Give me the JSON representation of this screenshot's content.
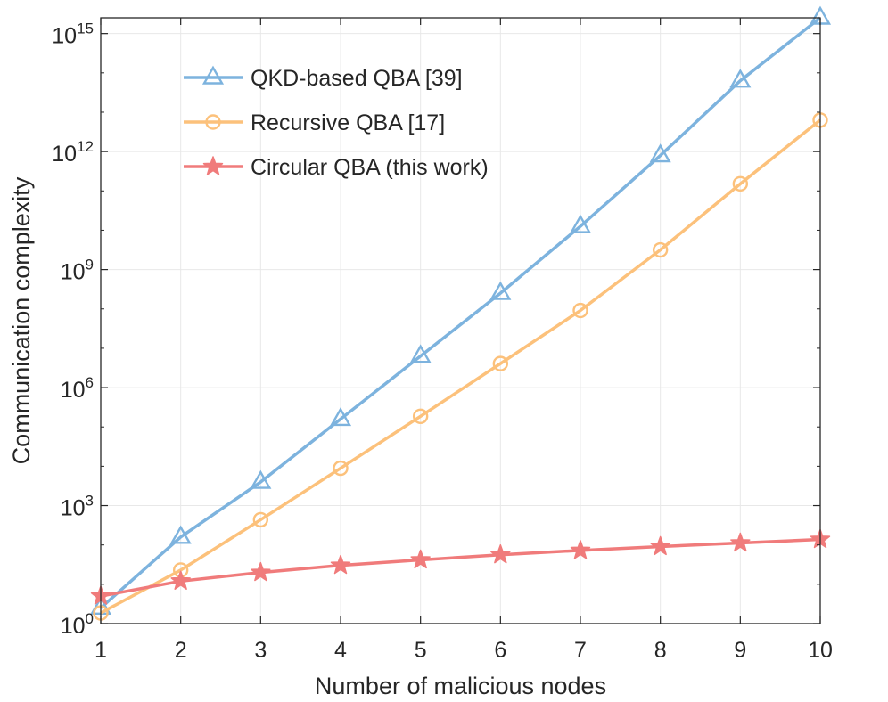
{
  "chart_data": {
    "type": "line",
    "title": "",
    "xlabel": "Number of malicious nodes",
    "ylabel": "Communication complexity",
    "yscale": "log10",
    "x": [
      1,
      2,
      3,
      4,
      5,
      6,
      7,
      8,
      9,
      10
    ],
    "xlim": [
      1,
      10
    ],
    "ylim_exponent": [
      0,
      15.4
    ],
    "grid": true,
    "legend_position": "top-left",
    "x_ticks": [
      "1",
      "2",
      "3",
      "4",
      "5",
      "6",
      "7",
      "8",
      "9",
      "10"
    ],
    "y_ticks": [
      {
        "base": "10",
        "exp": "0",
        "value": 0
      },
      {
        "base": "10",
        "exp": "3",
        "value": 3
      },
      {
        "base": "10",
        "exp": "6",
        "value": 6
      },
      {
        "base": "10",
        "exp": "9",
        "value": 9
      },
      {
        "base": "10",
        "exp": "12",
        "value": 12
      },
      {
        "base": "10",
        "exp": "15",
        "value": 15
      }
    ],
    "series": [
      {
        "name": "QKD-based QBA [39]",
        "color": "#7db3de",
        "marker": "triangle",
        "log10_values": [
          0.4,
          2.2,
          3.6,
          5.2,
          6.8,
          8.4,
          10.1,
          11.9,
          13.8,
          15.4
        ]
      },
      {
        "name": "Recursive QBA [17]",
        "color": "#fcc17b",
        "marker": "circle",
        "log10_values": [
          0.27,
          1.36,
          2.64,
          3.95,
          5.27,
          6.61,
          7.96,
          9.5,
          11.18,
          12.8
        ]
      },
      {
        "name": "Circular QBA (this work)",
        "color": "#f07b7b",
        "marker": "star",
        "log10_values": [
          0.7,
          1.08,
          1.3,
          1.48,
          1.62,
          1.75,
          1.86,
          1.96,
          2.05,
          2.14
        ]
      }
    ]
  }
}
